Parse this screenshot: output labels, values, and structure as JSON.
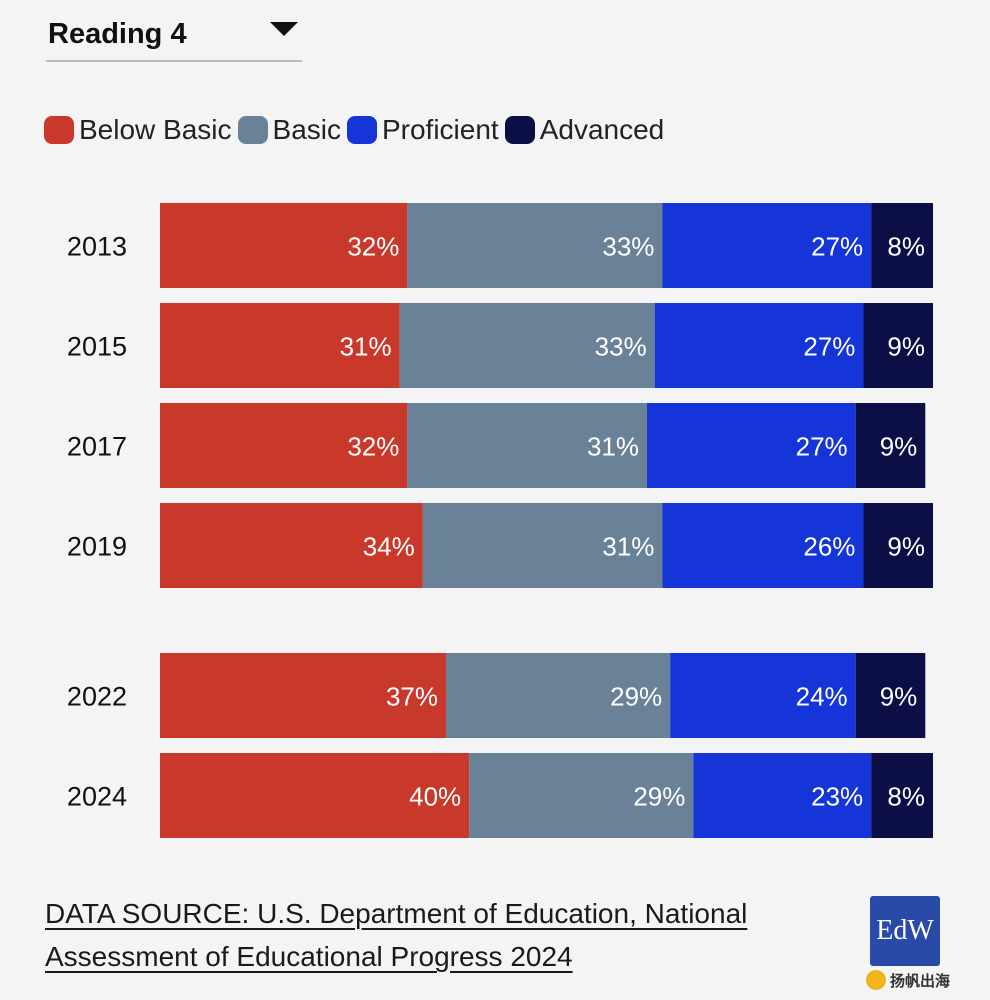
{
  "dropdown": {
    "selected": "Reading 4",
    "icon": "caret-down-icon"
  },
  "legend": [
    {
      "label": "Below Basic",
      "color": "#c9392b"
    },
    {
      "label": "Basic",
      "color": "#6a8298"
    },
    {
      "label": "Proficient",
      "color": "#1535d9"
    },
    {
      "label": "Advanced",
      "color": "#0b0f45"
    }
  ],
  "chart_data": {
    "type": "bar",
    "orientation": "horizontal",
    "stacked": true,
    "categories": [
      "2013",
      "2015",
      "2017",
      "2019",
      "2022",
      "2024"
    ],
    "series": [
      {
        "name": "Below Basic",
        "color": "#c9392b",
        "values": [
          32,
          31,
          32,
          34,
          37,
          40
        ],
        "labels": [
          "32%",
          "31%",
          "32%",
          "34%",
          "37%",
          "40%"
        ]
      },
      {
        "name": "Basic",
        "color": "#6a8298",
        "values": [
          33,
          33,
          31,
          31,
          29,
          29
        ],
        "labels": [
          "33%",
          "33%",
          "31%",
          "31%",
          "29%",
          "29%"
        ]
      },
      {
        "name": "Proficient",
        "color": "#1535d9",
        "values": [
          27,
          27,
          27,
          26,
          24,
          23
        ],
        "labels": [
          "27%",
          "27%",
          "27%",
          "26%",
          "24%",
          "23%"
        ]
      },
      {
        "name": "Advanced",
        "color": "#0b0f45",
        "values": [
          8,
          9,
          9,
          9,
          9,
          8
        ],
        "labels": [
          "8%",
          "9%",
          "9%",
          "9%",
          "9%",
          "8%"
        ]
      }
    ],
    "xlim": [
      0,
      100
    ],
    "legend_position": "top-left",
    "grid": false
  },
  "source": {
    "line1": "DATA SOURCE: U.S. Department of Education, National",
    "line2": "Assessment of Educational Progress 2024"
  },
  "logo": {
    "text": "EdW"
  },
  "watermark": {
    "text": "扬帆出海"
  }
}
